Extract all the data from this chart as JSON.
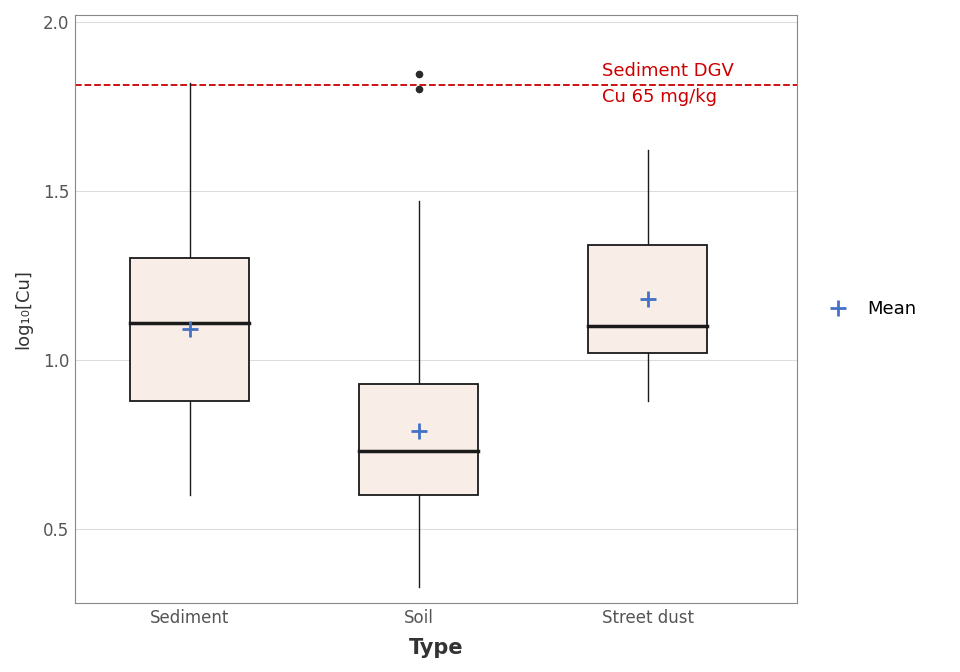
{
  "categories": [
    "Sediment",
    "Soil",
    "Street dust"
  ],
  "boxes": [
    {
      "label": "Sediment",
      "q1": 0.88,
      "median": 1.11,
      "q3": 1.3,
      "whisker_low": 0.6,
      "whisker_high": 1.82,
      "mean": 1.09,
      "outliers": []
    },
    {
      "label": "Soil",
      "q1": 0.6,
      "median": 0.73,
      "q3": 0.93,
      "whisker_low": 0.33,
      "whisker_high": 1.47,
      "mean": 0.79,
      "outliers": [
        1.8,
        1.845
      ]
    },
    {
      "label": "Street dust",
      "q1": 1.02,
      "median": 1.1,
      "q3": 1.34,
      "whisker_low": 0.88,
      "whisker_high": 1.62,
      "mean": 1.18,
      "outliers": []
    }
  ],
  "dgv_line": 1.813,
  "dgv_label1": "Sediment DGV",
  "dgv_label2": "Cu 65 mg/kg",
  "xlabel": "Type",
  "ylabel": "log₁₀[Cu]",
  "ylim": [
    0.28,
    2.02
  ],
  "yticks": [
    0.5,
    1.0,
    1.5,
    2.0
  ],
  "box_fill_color": "#f9ede8",
  "box_edge_color": "#1a1a1a",
  "median_color": "#1a1a1a",
  "whisker_color": "#1a1a1a",
  "outlier_color": "#2a2a2a",
  "mean_color": "#4472c4",
  "dgv_color": "#cc0000",
  "background_color": "#ffffff",
  "panel_background": "#ffffff",
  "grid_color": "#dddddd",
  "spine_color": "#888888",
  "tick_color": "#555555",
  "box_width": 0.52,
  "legend_label": "Mean",
  "mean_marker": "+",
  "xlabel_fontsize": 15,
  "ylabel_fontsize": 13,
  "tick_fontsize": 12,
  "dgv_fontsize": 13
}
